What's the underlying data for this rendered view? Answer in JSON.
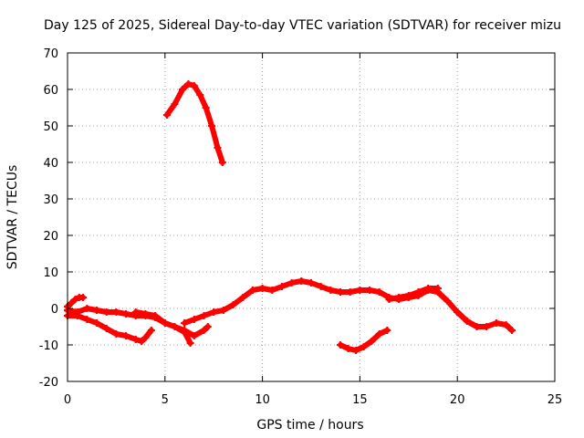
{
  "chart_data": {
    "type": "scatter",
    "title": "Day 125 of 2025, Sidereal Day-to-day VTEC variation (SDTVAR) for receiver mizu",
    "xlabel": "GPS time / hours",
    "ylabel": "SDTVAR / TECUs",
    "xlim": [
      0,
      25
    ],
    "ylim": [
      -20,
      70
    ],
    "xticks": [
      0,
      5,
      10,
      15,
      20,
      25
    ],
    "yticks": [
      -20,
      -10,
      0,
      10,
      20,
      30,
      40,
      50,
      60,
      70
    ],
    "xtick_labels": [
      "0",
      "5",
      "10",
      "15",
      "20",
      "25"
    ],
    "ytick_labels": [
      "-20",
      "-10",
      "0",
      "10",
      "20",
      "30",
      "40",
      "50",
      "60",
      "70"
    ],
    "grid": true,
    "marker_color": "#ff0000",
    "series": [
      {
        "name": "arc-high",
        "x": [
          5.1,
          5.5,
          5.9,
          6.2,
          6.5,
          6.8,
          7.1,
          7.4,
          7.7,
          7.95
        ],
        "y": [
          53,
          56,
          60,
          61.5,
          61,
          58.5,
          55,
          50,
          44,
          40
        ]
      },
      {
        "name": "arc-early-upper",
        "x": [
          0,
          0.2,
          0.4,
          0.6,
          0.8
        ],
        "y": [
          0.5,
          1.5,
          2.5,
          3,
          3
        ]
      },
      {
        "name": "arc-morning-a",
        "x": [
          0,
          0.5,
          1,
          1.5,
          2,
          2.5,
          3,
          3.5,
          4,
          4.5,
          5,
          5.5,
          6,
          6.3
        ],
        "y": [
          -0.5,
          -1,
          0,
          -0.5,
          -1,
          -1,
          -1.5,
          -2,
          -2,
          -2.5,
          -4,
          -5,
          -6.5,
          -9.5
        ]
      },
      {
        "name": "arc-morning-b",
        "x": [
          0,
          0.5,
          1,
          1.5,
          2,
          2.5,
          3,
          3.5,
          3.8,
          4,
          4.3
        ],
        "y": [
          -2,
          -2,
          -3,
          -4,
          -5.5,
          -7,
          -7.5,
          -8.5,
          -9,
          -8,
          -6
        ]
      },
      {
        "name": "arc-morning-c",
        "x": [
          3.5,
          4,
          4.5,
          5,
          5.5,
          6,
          6.5,
          7,
          7.2
        ],
        "y": [
          -1,
          -1.5,
          -2,
          -4,
          -5,
          -6,
          -7.5,
          -6,
          -5
        ]
      },
      {
        "name": "arc-main",
        "x": [
          6,
          6.5,
          7,
          7.5,
          8,
          8.5,
          9,
          9.5,
          10,
          10.5,
          11,
          11.5,
          12,
          12.5,
          13,
          13.5,
          14,
          14.5,
          15,
          15.5,
          16,
          16.5,
          17,
          17.5,
          18,
          18.5,
          19,
          19.5,
          20,
          20.5,
          21
        ],
        "y": [
          -4,
          -3,
          -2,
          -1,
          -0.5,
          1,
          3,
          5,
          5.5,
          5,
          6,
          7,
          7.5,
          7,
          6,
          5,
          4.5,
          4.5,
          5,
          5,
          4.5,
          3,
          2.5,
          3,
          3.5,
          5,
          4.5,
          2,
          -1,
          -3.5,
          -5
        ]
      },
      {
        "name": "arc-midday-lower",
        "x": [
          14,
          14.4,
          14.8,
          15.2,
          15.6,
          16,
          16.4
        ],
        "y": [
          -10,
          -11,
          -11.5,
          -10.5,
          -9,
          -7,
          -6
        ]
      },
      {
        "name": "arc-afternoon",
        "x": [
          16.5,
          17,
          17.5,
          18,
          18.5,
          19
        ],
        "y": [
          2.5,
          3,
          3.5,
          4.5,
          5.5,
          5.5
        ]
      },
      {
        "name": "arc-evening",
        "x": [
          20,
          20.5,
          21,
          21.5,
          22,
          22.5,
          22.8
        ],
        "y": [
          -1,
          -3.5,
          -5,
          -5,
          -4,
          -4.5,
          -6
        ]
      }
    ]
  }
}
